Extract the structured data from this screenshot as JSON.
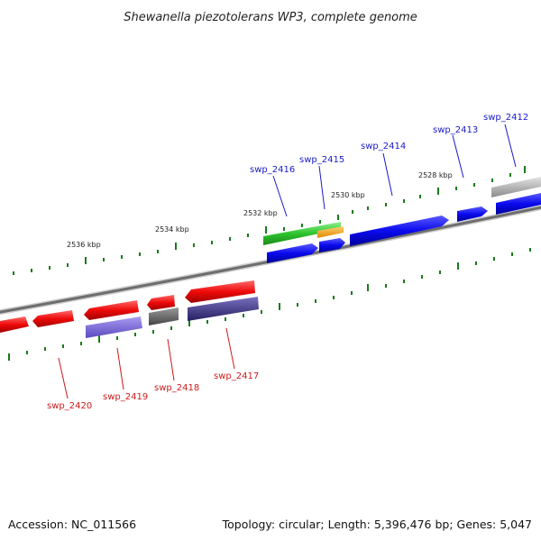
{
  "title": "Shewanella piezotolerans WP3, complete genome",
  "footer": {
    "accession": "Accession: NC_011566",
    "summary": "Topology: circular; Length: 5,396,476 bp; Genes: 5,047"
  },
  "scale_labels": [
    "2536 kbp",
    "2534 kbp",
    "2532 kbp",
    "2530 kbp",
    "2528 kbp"
  ],
  "genes_forward": [
    "swp_2416",
    "swp_2415",
    "swp_2414",
    "swp_2413",
    "swp_2412"
  ],
  "genes_reverse": [
    "swp_2420",
    "swp_2419",
    "swp_2418",
    "swp_2417"
  ],
  "colors": {
    "forward_cds": "#0a0aee",
    "reverse_cds": "#ee0a0a",
    "green_feature": "#2ec42e",
    "orange_feature": "#f5a010",
    "gray_feature": "#8a8a8a",
    "gray_reverse": "#555555",
    "purple_light": "#6a5ad0",
    "purple_dark": "#3a3580",
    "tick": "#1a7a1a",
    "backbone": "#777777"
  }
}
